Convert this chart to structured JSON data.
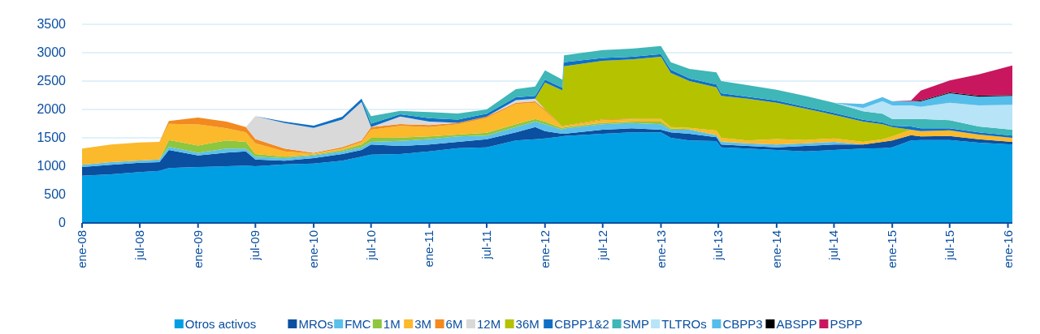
{
  "chart_data": {
    "type": "area",
    "stacked": true,
    "grid": "y",
    "legend": "bottom",
    "x": [
      "2008-01",
      "2008-04",
      "2008-07",
      "2008-09",
      "2008-10",
      "2009-01",
      "2009-04",
      "2009-06",
      "2009-07",
      "2009-10",
      "2010-01",
      "2010-04",
      "2010-06",
      "2010-07",
      "2010-10",
      "2011-01",
      "2011-04",
      "2011-07",
      "2011-10",
      "2011-12",
      "2012-01",
      "2012-02-25",
      "2012-03-01",
      "2012-07",
      "2012-10",
      "2013-01",
      "2013-02",
      "2013-04",
      "2013-06-25",
      "2013-07-10",
      "2013-10",
      "2014-01",
      "2014-04",
      "2014-07",
      "2014-10",
      "2014-12",
      "2015-01",
      "2015-03",
      "2015-04",
      "2015-07",
      "2015-10",
      "2016-01-15"
    ],
    "xlim": [
      "2008-01-01",
      "2016-01-15"
    ],
    "xticks": [
      {
        "value": "2008-01-01",
        "label": "ene-08"
      },
      {
        "value": "2008-07-01",
        "label": "jul-08"
      },
      {
        "value": "2009-01-01",
        "label": "ene-09"
      },
      {
        "value": "2009-07-01",
        "label": "jul-09"
      },
      {
        "value": "2010-01-01",
        "label": "ene-10"
      },
      {
        "value": "2010-07-01",
        "label": "jul-10"
      },
      {
        "value": "2011-01-01",
        "label": "ene-11"
      },
      {
        "value": "2011-07-01",
        "label": "jul-11"
      },
      {
        "value": "2012-01-01",
        "label": "ene-12"
      },
      {
        "value": "2012-07-01",
        "label": "jul-12"
      },
      {
        "value": "2013-01-01",
        "label": "ene-13"
      },
      {
        "value": "2013-07-01",
        "label": "jul-13"
      },
      {
        "value": "2014-01-01",
        "label": "ene-14"
      },
      {
        "value": "2014-07-01",
        "label": "jul-14"
      },
      {
        "value": "2015-01-01",
        "label": "ene-15"
      },
      {
        "value": "2015-07-01",
        "label": "jul-15"
      },
      {
        "value": "2016-01-01",
        "label": "ene-16"
      }
    ],
    "ylim": [
      0,
      3500
    ],
    "yticks": [
      0,
      500,
      1000,
      1500,
      2000,
      2500,
      3000,
      3500
    ],
    "series": [
      {
        "name": "Otros activos",
        "color": "#009fe3",
        "values": [
          833,
          857,
          895,
          919,
          967,
          986,
          1000,
          1010,
          1000,
          1033,
          1048,
          1095,
          1167,
          1205,
          1214,
          1262,
          1319,
          1333,
          1452,
          1476,
          1490,
          1524,
          1533,
          1571,
          1595,
          1595,
          1500,
          1452,
          1443,
          1333,
          1310,
          1286,
          1262,
          1286,
          1310,
          1319,
          1333,
          1452,
          1462,
          1462,
          1414,
          1381
        ]
      },
      {
        "name": "MROs",
        "color": "#0a4fa0",
        "values": [
          153,
          167,
          167,
          152,
          319,
          204,
          238,
          252,
          119,
          62,
          95,
          119,
          119,
          176,
          143,
          119,
          110,
          143,
          143,
          214,
          129,
          47,
          38,
          72,
          72,
          48,
          95,
          119,
          67,
          48,
          47,
          47,
          95,
          95,
          71,
          110,
          119,
          96,
          62,
          71,
          62,
          48
        ]
      },
      {
        "name": "FMC",
        "color": "#5cc0ea",
        "values": [
          39,
          48,
          38,
          48,
          57,
          47,
          72,
          47,
          48,
          48,
          47,
          48,
          47,
          48,
          90,
          96,
          96,
          65,
          95,
          95,
          119,
          72,
          95,
          96,
          95,
          95,
          47,
          71,
          33,
          48,
          48,
          48,
          48,
          48,
          0,
          null,
          null,
          null,
          null,
          null,
          null,
          null
        ]
      },
      {
        "name": "1M",
        "color": "#8dc63f",
        "values": [
          null,
          null,
          null,
          0,
          119,
          129,
          143,
          119,
          48,
          24,
          14,
          24,
          48,
          71,
          57,
          48,
          33,
          48,
          48,
          48,
          48,
          24,
          19,
          24,
          23,
          47,
          24,
          10,
          10,
          10,
          0,
          null,
          null,
          null,
          null,
          null,
          null,
          null,
          null,
          null,
          null,
          null
        ]
      },
      {
        "name": "3M",
        "color": "#fbb92c",
        "values": [
          285,
          309,
          319,
          310,
          285,
          371,
          214,
          167,
          190,
          95,
          19,
          24,
          48,
          143,
          205,
          166,
          181,
          262,
          357,
          286,
          190,
          24,
          20,
          47,
          39,
          48,
          24,
          24,
          75,
          61,
          48,
          96,
          57,
          62,
          48,
          47,
          72,
          95,
          95,
          100,
          81,
          71
        ]
      },
      {
        "name": "6M",
        "color": "#f28a1f",
        "values": [
          null,
          null,
          null,
          0,
          48,
          120,
          119,
          95,
          72,
          48,
          14,
          24,
          24,
          48,
          33,
          34,
          24,
          24,
          24,
          24,
          24,
          10,
          9,
          15,
          9,
          0,
          null,
          null,
          null,
          null,
          null,
          null,
          null,
          null,
          null,
          null,
          null,
          null,
          null,
          null,
          null,
          null
        ]
      },
      {
        "name": "12M",
        "color": "#d9d9d9",
        "values": [
          null,
          null,
          null,
          null,
          null,
          null,
          null,
          0,
          404,
          450,
          437,
          487,
          678,
          0,
          134,
          61,
          0,
          0,
          47,
          47,
          0,
          null,
          null,
          null,
          null,
          null,
          null,
          null,
          null,
          null,
          null,
          null,
          null,
          null,
          null,
          null,
          null,
          null,
          null,
          null,
          null,
          null
        ]
      },
      {
        "name": "36M",
        "color": "#b5c200",
        "values": [
          null,
          null,
          null,
          null,
          null,
          null,
          null,
          null,
          null,
          null,
          null,
          null,
          null,
          null,
          null,
          null,
          null,
          null,
          null,
          0,
          476,
          633,
          1048,
          1033,
          1048,
          1095,
          952,
          824,
          762,
          738,
          738,
          642,
          553,
          414,
          357,
          262,
          166,
          0,
          null,
          null,
          null,
          null
        ]
      },
      {
        "name": "CBPP1&2",
        "color": "#0f6fc6",
        "values": [
          null,
          null,
          null,
          null,
          null,
          null,
          null,
          null,
          0,
          26,
          40,
          50,
          60,
          60,
          40,
          60,
          60,
          50,
          48,
          48,
          48,
          48,
          71,
          48,
          47,
          48,
          57,
          47,
          48,
          48,
          33,
          39,
          33,
          33,
          33,
          33,
          24,
          57,
          48,
          34,
          38,
          38
        ]
      },
      {
        "name": "SMP",
        "color": "#3fb6b8",
        "values": [
          null,
          null,
          null,
          null,
          null,
          null,
          null,
          null,
          null,
          null,
          null,
          null,
          0,
          130,
          60,
          106,
          106,
          75,
          143,
          167,
          166,
          142,
          119,
          142,
          143,
          143,
          134,
          167,
          214,
          214,
          205,
          190,
          190,
          181,
          148,
          153,
          119,
          133,
          166,
          143,
          105,
          105
        ]
      },
      {
        "name": "TLTROs",
        "color": "#b7e4f7",
        "values": [
          null,
          null,
          null,
          null,
          null,
          null,
          null,
          null,
          null,
          null,
          null,
          null,
          null,
          null,
          null,
          null,
          null,
          null,
          null,
          null,
          null,
          null,
          null,
          null,
          null,
          null,
          null,
          null,
          null,
          null,
          null,
          null,
          null,
          0,
          57,
          224,
          238,
          238,
          215,
          309,
          371,
          438
        ]
      },
      {
        "name": "CBPP3",
        "color": "#55bde9",
        "values": [
          null,
          null,
          null,
          null,
          null,
          null,
          null,
          null,
          null,
          null,
          null,
          null,
          null,
          null,
          null,
          null,
          null,
          null,
          null,
          null,
          null,
          null,
          null,
          null,
          null,
          null,
          null,
          null,
          null,
          null,
          null,
          null,
          null,
          0,
          71,
          71,
          72,
          72,
          95,
          167,
          153,
          157
        ]
      },
      {
        "name": "ABSPP",
        "color": "#000000",
        "values": [
          null,
          null,
          null,
          null,
          null,
          null,
          null,
          null,
          null,
          null,
          null,
          null,
          null,
          null,
          null,
          null,
          null,
          null,
          null,
          null,
          null,
          null,
          null,
          null,
          null,
          null,
          null,
          null,
          null,
          null,
          null,
          null,
          null,
          null,
          null,
          null,
          0,
          5,
          14,
          14,
          19,
          14
        ]
      },
      {
        "name": "PSPP",
        "color": "#c8175f",
        "values": [
          null,
          null,
          null,
          null,
          null,
          null,
          null,
          null,
          null,
          null,
          null,
          null,
          null,
          null,
          null,
          null,
          null,
          null,
          null,
          null,
          null,
          null,
          null,
          null,
          null,
          null,
          null,
          null,
          null,
          null,
          null,
          null,
          null,
          null,
          null,
          null,
          0,
          10,
          176,
          210,
          376,
          524
        ]
      }
    ]
  }
}
